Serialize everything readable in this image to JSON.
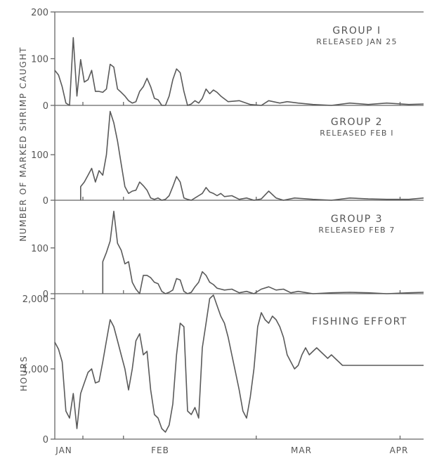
{
  "chart_data": [
    {
      "type": "line",
      "title": "GROUP I",
      "subtitle": "RELEASED JAN 25",
      "ylim": [
        0,
        200
      ],
      "yticks": [
        {
          "value": 0,
          "label": "0"
        },
        {
          "value": 100,
          "label": "100"
        },
        {
          "value": 200,
          "label": "200"
        }
      ],
      "series": [
        {
          "x": [
            0,
            1,
            2,
            3,
            4,
            5,
            6,
            7,
            8,
            9,
            10,
            11,
            12,
            13,
            14,
            15,
            16,
            17,
            18,
            19,
            20,
            21,
            22,
            23,
            24,
            25,
            26,
            27,
            28,
            29,
            30,
            31,
            32,
            33,
            34,
            35,
            36,
            37,
            38,
            39,
            40,
            41,
            42,
            43,
            44,
            45,
            47,
            50,
            53,
            56,
            58,
            61,
            63,
            66,
            70,
            75,
            80,
            85,
            90,
            96,
            100
          ],
          "y": [
            75,
            65,
            40,
            5,
            0,
            145,
            20,
            98,
            50,
            55,
            75,
            30,
            30,
            28,
            35,
            88,
            82,
            35,
            28,
            20,
            10,
            5,
            8,
            30,
            40,
            58,
            40,
            15,
            12,
            0,
            0,
            20,
            55,
            78,
            70,
            30,
            0,
            3,
            10,
            5,
            15,
            35,
            25,
            33,
            28,
            20,
            8,
            10,
            2,
            0,
            10,
            5,
            8,
            5,
            2,
            0,
            5,
            2,
            5,
            2,
            3
          ]
        }
      ]
    },
    {
      "type": "line",
      "title": "GROUP 2",
      "subtitle": "RELEASED FEB I",
      "ylim": [
        0,
        200
      ],
      "yticks": [
        {
          "value": 0,
          "label": "0"
        },
        {
          "value": 100,
          "label": "100"
        }
      ],
      "series": [
        {
          "x": [
            7,
            7,
            8,
            9,
            10,
            11,
            12,
            13,
            14,
            15,
            16,
            17,
            18,
            19,
            20,
            21,
            22,
            23,
            24,
            25,
            26,
            27,
            28,
            29,
            30,
            31,
            32,
            33,
            34,
            35,
            36,
            37,
            38,
            39,
            40,
            41,
            42,
            43,
            44,
            45,
            46,
            48,
            50,
            52,
            54,
            56,
            58,
            60,
            62,
            65,
            70,
            75,
            80,
            85,
            90,
            96,
            100
          ],
          "y": [
            0,
            30,
            40,
            55,
            70,
            40,
            65,
            55,
            100,
            195,
            170,
            130,
            80,
            30,
            15,
            20,
            22,
            40,
            32,
            22,
            5,
            2,
            5,
            0,
            2,
            10,
            30,
            52,
            40,
            5,
            2,
            0,
            5,
            10,
            15,
            28,
            18,
            15,
            10,
            15,
            8,
            10,
            2,
            5,
            0,
            3,
            20,
            5,
            0,
            5,
            2,
            0,
            5,
            3,
            2,
            2,
            5
          ]
        }
      ]
    },
    {
      "type": "line",
      "title": "GROUP 3",
      "subtitle": "RELEASED FEB 7",
      "ylim": [
        0,
        200
      ],
      "yticks": [
        {
          "value": 0,
          "label": "0"
        },
        {
          "value": 100,
          "label": "100"
        }
      ],
      "series": [
        {
          "x": [
            13,
            13,
            14,
            15,
            16,
            17,
            18,
            19,
            20,
            21,
            22,
            23,
            24,
            25,
            26,
            27,
            28,
            29,
            30,
            31,
            32,
            33,
            34,
            35,
            36,
            37,
            38,
            39,
            40,
            41,
            42,
            43,
            44,
            45,
            46,
            48,
            50,
            52,
            54,
            56,
            58,
            60,
            62,
            64,
            66,
            70,
            75,
            80,
            85,
            90,
            96,
            100
          ],
          "y": [
            0,
            70,
            90,
            115,
            180,
            110,
            95,
            65,
            70,
            25,
            10,
            0,
            40,
            40,
            35,
            25,
            22,
            5,
            0,
            3,
            8,
            33,
            30,
            5,
            0,
            3,
            15,
            25,
            48,
            40,
            25,
            20,
            12,
            10,
            8,
            10,
            2,
            5,
            0,
            10,
            15,
            8,
            10,
            2,
            5,
            0,
            2,
            3,
            2,
            0,
            2,
            3
          ]
        }
      ]
    },
    {
      "type": "line",
      "title": "FISHING EFFORT",
      "ylabel": "HOURS",
      "ylim": [
        0,
        2000
      ],
      "yticks": [
        {
          "value": 0,
          "label": "0"
        },
        {
          "value": 1000,
          "label": "1,000"
        },
        {
          "value": 2000,
          "label": "2,000"
        }
      ],
      "series": [
        {
          "x": [
            0,
            1,
            2,
            3,
            4,
            5,
            6,
            7,
            8,
            9,
            10,
            11,
            12,
            13,
            14,
            15,
            16,
            17,
            18,
            19,
            20,
            21,
            22,
            23,
            24,
            25,
            26,
            27,
            28,
            29,
            30,
            31,
            32,
            33,
            34,
            35,
            36,
            37,
            38,
            39,
            40,
            41,
            42,
            43,
            44,
            45,
            46,
            47,
            48,
            49,
            50,
            51,
            52,
            53,
            54,
            55,
            56,
            57,
            58,
            59,
            60,
            61,
            62,
            63,
            64,
            65,
            66,
            67,
            68,
            69,
            70,
            71,
            72,
            73,
            74,
            75,
            76,
            77,
            78,
            79,
            80,
            81,
            82,
            83,
            84,
            85,
            86,
            87,
            88,
            89,
            90,
            91,
            92,
            93,
            94,
            95,
            96,
            97,
            98,
            99,
            100
          ],
          "y": [
            1380,
            1280,
            1100,
            400,
            300,
            650,
            150,
            650,
            800,
            950,
            1000,
            800,
            820,
            1100,
            1400,
            1700,
            1600,
            1400,
            1200,
            1000,
            700,
            1000,
            1400,
            1500,
            1200,
            1250,
            700,
            350,
            300,
            150,
            100,
            200,
            500,
            1200,
            1650,
            1600,
            400,
            350,
            450,
            300,
            1300,
            1650,
            2000,
            2050,
            1900,
            1750,
            1650,
            1450,
            1200,
            950,
            700,
            400,
            300,
            600,
            1000,
            1600,
            1800,
            1700,
            1650,
            1750,
            1700,
            1600,
            1450,
            1200,
            1100,
            1000,
            1050,
            1200,
            1300,
            1200,
            1250,
            1300,
            1250,
            1200,
            1150,
            1200,
            1150,
            1100,
            1050,
            1050,
            1050,
            1050,
            1050,
            1050,
            1050,
            1050,
            1050,
            1050,
            1050,
            1050,
            1050,
            1050,
            1050,
            1050,
            1050,
            1050,
            1050,
            1050,
            1050,
            1050,
            1050
          ]
        }
      ]
    }
  ],
  "x_axis": {
    "tick_labels": [
      "JAN",
      "FEB",
      "MAR",
      "APR"
    ]
  },
  "y_axis_label": "NUMBER OF MARKED SHRIMP CAUGHT"
}
